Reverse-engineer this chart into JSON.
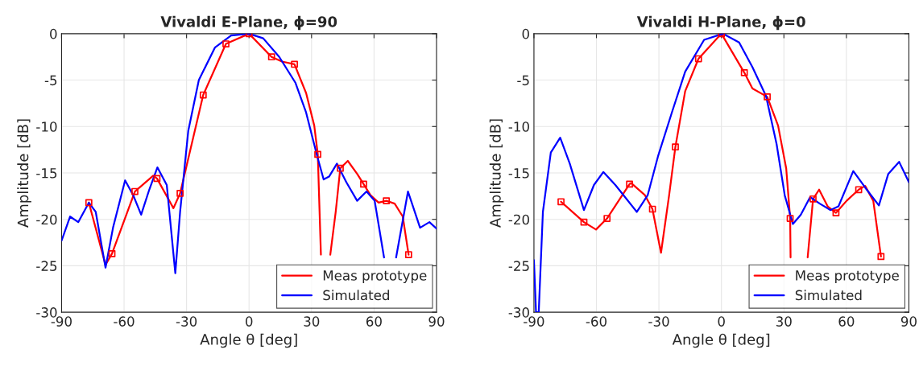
{
  "chart_data": [
    {
      "type": "line",
      "title": "Vivaldi E-Plane, ϕ=90",
      "xlabel": "Angle θ [deg]",
      "ylabel": "Amplitude [dB]",
      "xlim": [
        -90,
        90
      ],
      "ylim": [
        -30,
        0
      ],
      "xticks": [
        -90,
        -60,
        -30,
        0,
        30,
        60,
        90
      ],
      "yticks": [
        -30,
        -25,
        -20,
        -15,
        -10,
        -5,
        0
      ],
      "grid": true,
      "legend": "bottom right",
      "series": [
        {
          "name": "Meas prototype",
          "color": "#ff0000",
          "x": [
            -76.9,
            -68.9,
            -65.8,
            -54.8,
            -46,
            -44.2,
            -36.3,
            -33.1,
            -22.0,
            -11.1,
            0,
            10.8,
            15.8,
            21.8,
            27.4,
            31.3,
            33.0,
            34.5,
            35.5,
            38.5,
            39.0,
            41.6,
            43.8,
            47.4,
            51.9,
            55.0,
            58.3,
            62.2,
            65.9,
            69.9,
            73.8,
            76.6
          ],
          "values": [
            -18.2,
            -24.9,
            -23.7,
            -17.0,
            -15.3,
            -15.6,
            -18.8,
            -17.2,
            -6.6,
            -1.1,
            0,
            -2.5,
            -3.0,
            -3.3,
            -6.4,
            -9.9,
            -13.0,
            -23.8,
            null,
            null,
            -23.8,
            -19.2,
            -14.5,
            -13.7,
            -15.1,
            -16.2,
            -17.4,
            -18.2,
            -18.0,
            -18.3,
            -19.7,
            -23.8
          ]
        },
        {
          "type": "scatter",
          "color": "#ff0000",
          "marker": "square",
          "x": [
            -76.9,
            -65.8,
            -54.8,
            -44.2,
            -33.1,
            -22.0,
            -11.1,
            0,
            10.8,
            21.8,
            33.0,
            43.8,
            55.0,
            65.9,
            76.6
          ],
          "values": [
            -18.2,
            -23.7,
            -17.0,
            -15.6,
            -17.2,
            -6.6,
            -1.1,
            0,
            -2.5,
            -3.3,
            -13.0,
            -14.5,
            -16.2,
            -18.0,
            -23.8
          ]
        },
        {
          "name": "Simulated",
          "color": "#0000ff",
          "x": [
            -90,
            -85.9,
            -82.0,
            -76.9,
            -73.6,
            -68.9,
            -65.3,
            -59.5,
            -55.6,
            -51.8,
            -47.9,
            -44.0,
            -39.5,
            -35.4,
            -33.1,
            -29.2,
            -24.1,
            -16.4,
            -8.6,
            0,
            6.8,
            14.5,
            22.3,
            27.4,
            32.6,
            35.8,
            38.4,
            42.2,
            46.7,
            51.9,
            56.4,
            60.3,
            64.8,
            67,
            68,
            70.6,
            76.3,
            82.1,
            86.6,
            90
          ],
          "values": [
            -22.3,
            -19.7,
            -20.3,
            -18.2,
            -19.2,
            -25.2,
            -20.9,
            -15.8,
            -17.4,
            -19.5,
            -16.8,
            -14.4,
            -16.3,
            -25.8,
            -19.2,
            -10.5,
            -5.0,
            -1.5,
            -0.2,
            0,
            -0.5,
            -2.5,
            -5.3,
            -8.5,
            -13.1,
            -15.7,
            -15.4,
            -14.0,
            -16.0,
            -18.0,
            -17.0,
            -18.0,
            -24.1,
            null,
            null,
            -24.1,
            -17.0,
            -20.9,
            -20.3,
            -21.0
          ]
        }
      ]
    },
    {
      "type": "line",
      "title": "Vivaldi H-Plane, ϕ=0",
      "xlabel": "Angle θ [deg]",
      "ylabel": "Amplitude [dB]",
      "xlim": [
        -90,
        90
      ],
      "ylim": [
        -30,
        0
      ],
      "xticks": [
        -90,
        -60,
        -30,
        0,
        30,
        60,
        90
      ],
      "yticks": [
        -30,
        -25,
        -20,
        -15,
        -10,
        -5,
        0
      ],
      "grid": true,
      "legend": "bottom right",
      "series": [
        {
          "name": "Meas prototype",
          "color": "#ff0000",
          "x": [
            -77.0,
            -66.0,
            -60.2,
            -54.9,
            -44.1,
            -43.3,
            -36.7,
            -33.1,
            -29.0,
            -25.1,
            -22.1,
            -17.4,
            -11.0,
            0,
            11.0,
            14.9,
            22.0,
            27.2,
            31.1,
            33.0,
            33.2,
            36,
            40,
            41.4,
            44.0,
            46.9,
            51.0,
            55.0,
            60.1,
            65.9,
            69.0,
            72.9,
            76.6
          ],
          "values": [
            -18.1,
            -20.3,
            -21.1,
            -19.9,
            -16.2,
            -16.1,
            -17.4,
            -18.9,
            -23.6,
            -17.4,
            -12.2,
            -6.2,
            -2.7,
            0,
            -4.2,
            -5.9,
            -6.8,
            -9.9,
            -14.5,
            -19.9,
            -24.1,
            null,
            null,
            -24.1,
            -17.8,
            -16.8,
            -18.6,
            -19.3,
            -18.0,
            -16.8,
            -16.4,
            -18.0,
            -24.0
          ]
        },
        {
          "type": "scatter",
          "color": "#ff0000",
          "marker": "square",
          "x": [
            -77.0,
            -66.0,
            -54.9,
            -44.1,
            -33.1,
            -22.1,
            -11.0,
            0,
            11.0,
            22.0,
            33.0,
            44.0,
            55.0,
            65.9,
            76.6
          ],
          "values": [
            -18.1,
            -20.3,
            -19.9,
            -16.2,
            -18.9,
            -12.2,
            -2.7,
            0,
            -4.2,
            -6.8,
            -19.9,
            -17.8,
            -19.3,
            -16.8,
            -24.0
          ]
        },
        {
          "name": "Simulated",
          "color": "#0000ff",
          "x": [
            -90,
            -89,
            -87.7,
            -85.7,
            -81.9,
            -77.4,
            -72.8,
            -66.0,
            -61.2,
            -56.7,
            -50.9,
            -40.6,
            -35.4,
            -30.3,
            -23.8,
            -17.4,
            -8.3,
            0.7,
            8.5,
            14.9,
            21.4,
            26.5,
            30.4,
            34.3,
            38.1,
            42.6,
            47.2,
            52.3,
            56.2,
            63.3,
            69.1,
            75.6,
            80.1,
            85.3,
            90
          ],
          "values": [
            -24.4,
            -30,
            -30,
            -19.2,
            -12.8,
            -11.2,
            -14.0,
            -19.0,
            -16.3,
            -14.9,
            -16.3,
            -19.2,
            -17.4,
            -13.1,
            -8.5,
            -4.1,
            -0.66,
            0,
            -0.95,
            -3.6,
            -6.7,
            -11.9,
            -17.4,
            -20.5,
            -19.5,
            -17.6,
            -18.3,
            -19.0,
            -18.6,
            -14.8,
            -16.6,
            -18.5,
            -15.1,
            -13.8,
            -16.0
          ]
        }
      ]
    }
  ]
}
